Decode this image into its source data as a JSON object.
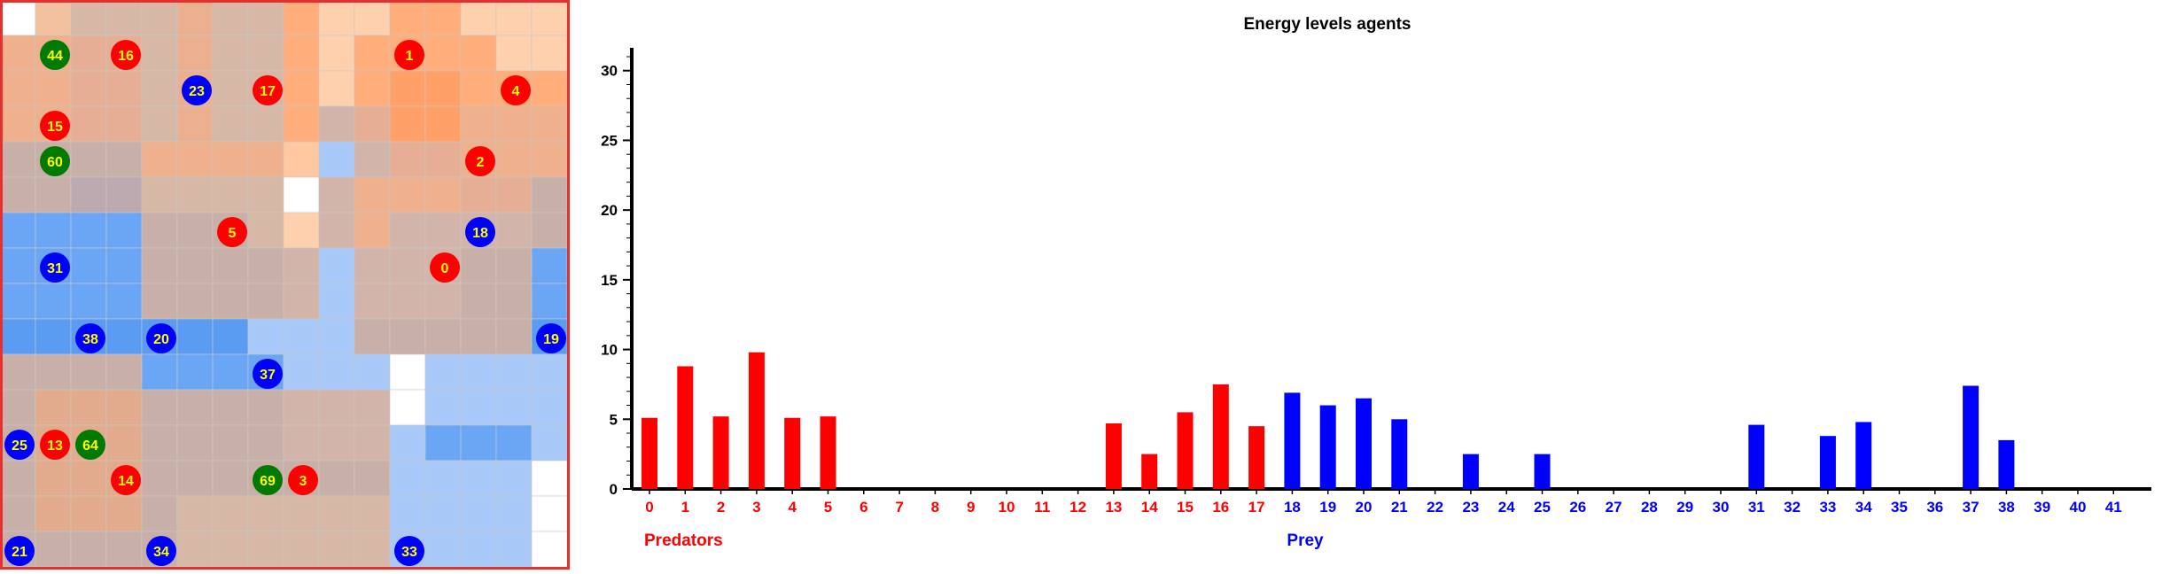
{
  "colors": {
    "predator": "#ff0000",
    "prey": "#0000ff",
    "other_agent": "#007a00",
    "agent_label": "#ffff00",
    "grid_border": "#e53030",
    "cell_line": "#c8c8c8"
  },
  "grid": {
    "rows": 16,
    "cols": 16,
    "cell_colors": [
      [
        "#ffffff",
        "#f2c19f",
        "#d7b7a6",
        "#d7b7a6",
        "#d7b7a6",
        "#eab08f",
        "#d7b7a6",
        "#d7b7a6",
        "#ffad7a",
        "#ffd0ad",
        "#ffd0ad",
        "#ffad7a",
        "#ffad7a",
        "#ffd0ad",
        "#ffd0ad",
        "#ffd0ad"
      ],
      [
        "#eeb08d",
        "#eeb08d",
        "#e6ae94",
        "#e6ae94",
        "#d7b7a6",
        "#eab08f",
        "#d7b7a6",
        "#d7b7a6",
        "#ffad7a",
        "#ffd0ad",
        "#ffad7a",
        "#ffad7a",
        "#ffad7a",
        "#ffad7a",
        "#ffd0ad",
        "#ffd0ad"
      ],
      [
        "#eeb08d",
        "#eeb08d",
        "#e6ae94",
        "#e6ae94",
        "#d7b7a6",
        "#eab08f",
        "#d7b7a6",
        "#d7b7a6",
        "#ffad7a",
        "#ffd0ad",
        "#ffad7a",
        "#ffa068",
        "#ffa068",
        "#ffad7a",
        "#ffad7a",
        "#ffad7a"
      ],
      [
        "#eeb08d",
        "#eeb08d",
        "#e6ae94",
        "#e6ae94",
        "#d7b7a6",
        "#eab08f",
        "#d7b7a6",
        "#d7b7a6",
        "#ffad7a",
        "#d2b4ab",
        "#e6ae94",
        "#ffa068",
        "#ffa068",
        "#eeb08d",
        "#eeb08d",
        "#eeb08d"
      ],
      [
        "#c8afa8",
        "#c8afa8",
        "#c8afa8",
        "#c8afa8",
        "#eeb08d",
        "#eeb08d",
        "#eeb08d",
        "#eeb08d",
        "#ffc8a0",
        "#a8c8f8",
        "#d2b4ab",
        "#e6ae94",
        "#e6ae94",
        "#eeb08d",
        "#eeb08d",
        "#eeb08d"
      ],
      [
        "#c8afa8",
        "#c8afa8",
        "#bcaab0",
        "#bcaab0",
        "#d7b7a6",
        "#d7b7a6",
        "#d7b7a6",
        "#d7b7a6",
        "#ffffff",
        "#d2b4ab",
        "#eeb08d",
        "#eeb08d",
        "#eeb08d",
        "#e6ae94",
        "#e6ae94",
        "#c8afa8"
      ],
      [
        "#6aa6f4",
        "#6aa6f4",
        "#6aa6f4",
        "#6aa6f4",
        "#c8afa8",
        "#c8afa8",
        "#c8afa8",
        "#d7b7a6",
        "#ffd0ad",
        "#d2b4ab",
        "#eeb08d",
        "#d2b4ab",
        "#d2b4ab",
        "#d2b4ab",
        "#d2b4ab",
        "#c8afa8"
      ],
      [
        "#6aa6f4",
        "#6aa6f4",
        "#6aa6f4",
        "#6aa6f4",
        "#c8afa8",
        "#c8afa8",
        "#c8afa8",
        "#c8afa8",
        "#d2b4ab",
        "#a8c8f8",
        "#d2b4ab",
        "#d2b4ab",
        "#d2b4ab",
        "#c8afa8",
        "#c8afa8",
        "#6aa6f4"
      ],
      [
        "#6aa6f4",
        "#6aa6f4",
        "#6aa6f4",
        "#6aa6f4",
        "#c8afa8",
        "#c8afa8",
        "#c8afa8",
        "#c8afa8",
        "#d2b4ab",
        "#a8c8f8",
        "#d2b4ab",
        "#d2b4ab",
        "#d2b4ab",
        "#c8afa8",
        "#c8afa8",
        "#6aa6f4"
      ],
      [
        "#5a9cf2",
        "#5a9cf2",
        "#5a9cf2",
        "#5a9cf2",
        "#5a9cf2",
        "#5a9cf2",
        "#5a9cf2",
        "#a8c8f8",
        "#a8c8f8",
        "#a8c8f8",
        "#c8afa8",
        "#c8afa8",
        "#c8afa8",
        "#c8afa8",
        "#c8afa8",
        "#5a9cf2"
      ],
      [
        "#c8afa8",
        "#c8afa8",
        "#c8afa8",
        "#c8afa8",
        "#6aa6f4",
        "#6aa6f4",
        "#6aa6f4",
        "#6aa6f4",
        "#a8c8f8",
        "#a8c8f8",
        "#a8c8f8",
        "#ffffff",
        "#a8c8f8",
        "#a8c8f8",
        "#a8c8f8",
        "#a8c8f8"
      ],
      [
        "#c8afa8",
        "#e3ab8d",
        "#e3ab8d",
        "#e3ab8d",
        "#c8afa8",
        "#c8afa8",
        "#c8afa8",
        "#c8afa8",
        "#d2b4ab",
        "#d2b4ab",
        "#d2b4ab",
        "#ffffff",
        "#a8c8f8",
        "#a8c8f8",
        "#a8c8f8",
        "#a8c8f8"
      ],
      [
        "#c8afa8",
        "#e3ab8d",
        "#e3ab8d",
        "#e3ab8d",
        "#c8afa8",
        "#c8afa8",
        "#c8afa8",
        "#c8afa8",
        "#d2b4ab",
        "#d2b4ab",
        "#d2b4ab",
        "#a8c8f8",
        "#6aa6f4",
        "#6aa6f4",
        "#6aa6f4",
        "#a8c8f8"
      ],
      [
        "#c8afa8",
        "#e3ab8d",
        "#e3ab8d",
        "#e3ab8d",
        "#c8afa8",
        "#c8afa8",
        "#c8afa8",
        "#c8afa8",
        "#c8afa8",
        "#c8afa8",
        "#c8afa8",
        "#a8c8f8",
        "#a8c8f8",
        "#a8c8f8",
        "#a8c8f8",
        "#ffffff"
      ],
      [
        "#c8afa8",
        "#e3ab8d",
        "#e3ab8d",
        "#e3ab8d",
        "#c8afa8",
        "#d7b7a6",
        "#d7b7a6",
        "#d7b7a6",
        "#d7b7a6",
        "#d7b7a6",
        "#d7b7a6",
        "#a8c8f8",
        "#a8c8f8",
        "#a8c8f8",
        "#a8c8f8",
        "#ffffff"
      ],
      [
        "#c8afa8",
        "#c8afa8",
        "#c8afa8",
        "#c8afa8",
        "#c8afa8",
        "#d7b7a6",
        "#d7b7a6",
        "#d7b7a6",
        "#d7b7a6",
        "#d7b7a6",
        "#d7b7a6",
        "#a8c8f8",
        "#a8c8f8",
        "#a8c8f8",
        "#a8c8f8",
        "#ffffff"
      ]
    ],
    "agents": [
      {
        "id": "44",
        "kind": "other",
        "row": 1,
        "col": 1
      },
      {
        "id": "16",
        "kind": "predator",
        "row": 1,
        "col": 3
      },
      {
        "id": "1",
        "kind": "predator",
        "row": 1,
        "col": 11
      },
      {
        "id": "23",
        "kind": "prey",
        "row": 2,
        "col": 5
      },
      {
        "id": "17",
        "kind": "predator",
        "row": 2,
        "col": 7
      },
      {
        "id": "4",
        "kind": "predator",
        "row": 2,
        "col": 14
      },
      {
        "id": "15",
        "kind": "predator",
        "row": 3,
        "col": 1
      },
      {
        "id": "60",
        "kind": "other",
        "row": 4,
        "col": 1
      },
      {
        "id": "2",
        "kind": "predator",
        "row": 4,
        "col": 13
      },
      {
        "id": "5",
        "kind": "predator",
        "row": 6,
        "col": 6
      },
      {
        "id": "18",
        "kind": "prey",
        "row": 6,
        "col": 13
      },
      {
        "id": "31",
        "kind": "prey",
        "row": 7,
        "col": 1
      },
      {
        "id": "0",
        "kind": "predator",
        "row": 7,
        "col": 12
      },
      {
        "id": "38",
        "kind": "prey",
        "row": 9,
        "col": 2
      },
      {
        "id": "20",
        "kind": "prey",
        "row": 9,
        "col": 4
      },
      {
        "id": "19",
        "kind": "prey",
        "row": 9,
        "col": 15
      },
      {
        "id": "37",
        "kind": "prey",
        "row": 10,
        "col": 7
      },
      {
        "id": "25",
        "kind": "prey",
        "row": 12,
        "col": 0
      },
      {
        "id": "13",
        "kind": "predator",
        "row": 12,
        "col": 1
      },
      {
        "id": "64",
        "kind": "other",
        "row": 12,
        "col": 2
      },
      {
        "id": "14",
        "kind": "predator",
        "row": 13,
        "col": 3
      },
      {
        "id": "69",
        "kind": "other",
        "row": 13,
        "col": 7
      },
      {
        "id": "3",
        "kind": "predator",
        "row": 13,
        "col": 8
      },
      {
        "id": "21",
        "kind": "prey",
        "row": 15,
        "col": 0
      },
      {
        "id": "34",
        "kind": "prey",
        "row": 15,
        "col": 4
      },
      {
        "id": "33",
        "kind": "prey",
        "row": 15,
        "col": 11
      }
    ]
  },
  "chart_data": {
    "type": "bar",
    "title": "Energy levels agents",
    "xlabel": "",
    "ylabel": "",
    "ylim": [
      0,
      31
    ],
    "y_ticks": [
      "0",
      "5",
      "10",
      "15",
      "20",
      "25",
      "30"
    ],
    "grid": false,
    "categories": [
      "0",
      "1",
      "2",
      "3",
      "4",
      "5",
      "6",
      "7",
      "8",
      "9",
      "10",
      "11",
      "12",
      "13",
      "14",
      "15",
      "16",
      "17",
      "18",
      "19",
      "20",
      "21",
      "22",
      "23",
      "24",
      "25",
      "26",
      "27",
      "28",
      "29",
      "30",
      "31",
      "32",
      "33",
      "34",
      "35",
      "36",
      "37",
      "38",
      "39",
      "40",
      "41"
    ],
    "values": [
      5.1,
      8.8,
      5.2,
      9.8,
      5.1,
      5.2,
      0,
      0,
      0,
      0,
      0,
      0,
      0,
      4.7,
      2.5,
      5.5,
      7.5,
      4.5,
      6.9,
      6.0,
      6.5,
      5.0,
      0,
      2.5,
      0,
      2.5,
      0,
      0,
      0,
      0,
      0,
      4.6,
      0,
      3.8,
      4.8,
      0,
      0,
      7.4,
      3.5,
      0,
      0,
      0
    ],
    "groups": [
      {
        "label": "Predators",
        "from": 0,
        "to": 17,
        "color": "#ff0000"
      },
      {
        "label": "Prey",
        "from": 18,
        "to": 41,
        "color": "#0000ff"
      }
    ]
  }
}
